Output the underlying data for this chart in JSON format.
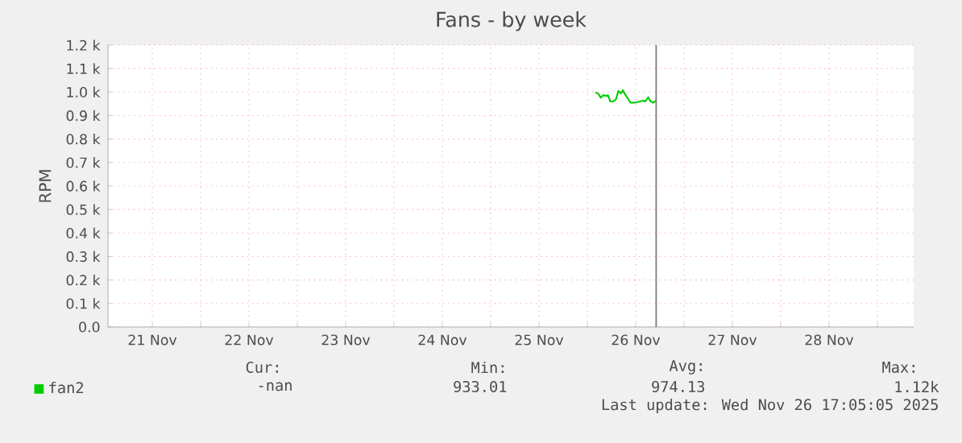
{
  "chart_data": {
    "type": "line",
    "title": "Fans - by week",
    "ylabel": "RPM",
    "x": [
      "2025-11-26T02:00",
      "2025-11-26T02:48",
      "2025-11-26T03:18",
      "2025-11-26T04:00",
      "2025-11-26T04:42",
      "2025-11-26T05:06",
      "2025-11-26T05:42",
      "2025-11-26T06:24",
      "2025-11-26T07:06",
      "2025-11-26T07:42",
      "2025-11-26T08:18",
      "2025-11-26T08:48",
      "2025-11-26T09:30",
      "2025-11-26T10:06",
      "2025-11-26T10:42",
      "2025-11-26T11:42",
      "2025-11-26T13:06",
      "2025-11-26T13:54",
      "2025-11-26T14:24",
      "2025-11-26T15:06",
      "2025-11-26T15:42",
      "2025-11-26T16:24",
      "2025-11-26T17:06"
    ],
    "series": [
      {
        "name": "fan2",
        "color": "#00cc00",
        "values": [
          999,
          992,
          976,
          987,
          983,
          987,
          960,
          960,
          969,
          1005,
          994,
          1008,
          987,
          971,
          955,
          955,
          960,
          964,
          960,
          978,
          960,
          955,
          964
        ]
      }
    ],
    "xlim": [
      "2025-11-21T01:00",
      "2025-11-29T09:00"
    ],
    "xticks": [
      {
        "value": "2025-11-21T12:00",
        "label": "21 Nov"
      },
      {
        "value": "2025-11-22T00:00",
        "label": null
      },
      {
        "value": "2025-11-22T12:00",
        "label": "22 Nov"
      },
      {
        "value": "2025-11-23T00:00",
        "label": null
      },
      {
        "value": "2025-11-23T12:00",
        "label": "23 Nov"
      },
      {
        "value": "2025-11-24T00:00",
        "label": null
      },
      {
        "value": "2025-11-24T12:00",
        "label": "24 Nov"
      },
      {
        "value": "2025-11-25T00:00",
        "label": null
      },
      {
        "value": "2025-11-25T12:00",
        "label": "25 Nov"
      },
      {
        "value": "2025-11-26T00:00",
        "label": null
      },
      {
        "value": "2025-11-26T12:00",
        "label": "26 Nov"
      },
      {
        "value": "2025-11-27T00:00",
        "label": null
      },
      {
        "value": "2025-11-27T12:00",
        "label": "27 Nov"
      },
      {
        "value": "2025-11-28T00:00",
        "label": null
      },
      {
        "value": "2025-11-28T12:00",
        "label": "28 Nov"
      },
      {
        "value": "2025-11-29T00:00",
        "label": null
      }
    ],
    "ylim": [
      0,
      1200
    ],
    "yticks": [
      {
        "value": 0,
        "label": "0.0"
      },
      {
        "value": 100,
        "label": "0.1 k"
      },
      {
        "value": 200,
        "label": "0.2 k"
      },
      {
        "value": 300,
        "label": "0.3 k"
      },
      {
        "value": 400,
        "label": "0.4 k"
      },
      {
        "value": 500,
        "label": "0.5 k"
      },
      {
        "value": 600,
        "label": "0.6 k"
      },
      {
        "value": 700,
        "label": "0.7 k"
      },
      {
        "value": 800,
        "label": "0.8 k"
      },
      {
        "value": 900,
        "label": "0.9 k"
      },
      {
        "value": 1000,
        "label": "1.0 k"
      },
      {
        "value": 1100,
        "label": "1.1 k"
      },
      {
        "value": 1200,
        "label": "1.2 k"
      }
    ],
    "ref_lines": [
      {
        "axis": "x",
        "value": "2025-11-26T17:05",
        "color": "#808080"
      }
    ],
    "grid": true,
    "legend": "bottom left",
    "annotations": [
      "Cur:",
      "-nan",
      "Min:",
      "933.01",
      "Avg:",
      "974.13",
      "Max:",
      "1.12k",
      "Last update: Wed Nov 26 17:05:05 2025"
    ]
  }
}
